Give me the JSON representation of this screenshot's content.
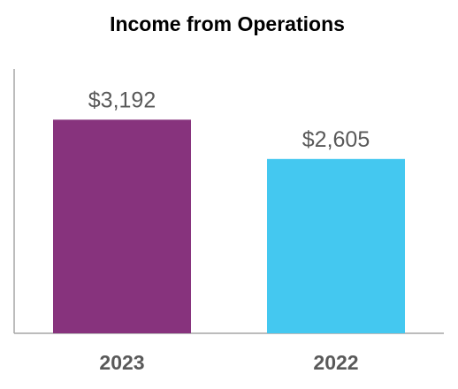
{
  "chart_data": {
    "type": "bar",
    "title": "Income from Operations",
    "categories": [
      "2023",
      "2022"
    ],
    "values": [
      3192,
      2605
    ],
    "data_labels": [
      "$3,192",
      "$2,605"
    ],
    "colors": [
      "#87337D",
      "#44C8F0"
    ],
    "ylim": [
      0,
      3950
    ],
    "grid": false,
    "legend": "none"
  }
}
